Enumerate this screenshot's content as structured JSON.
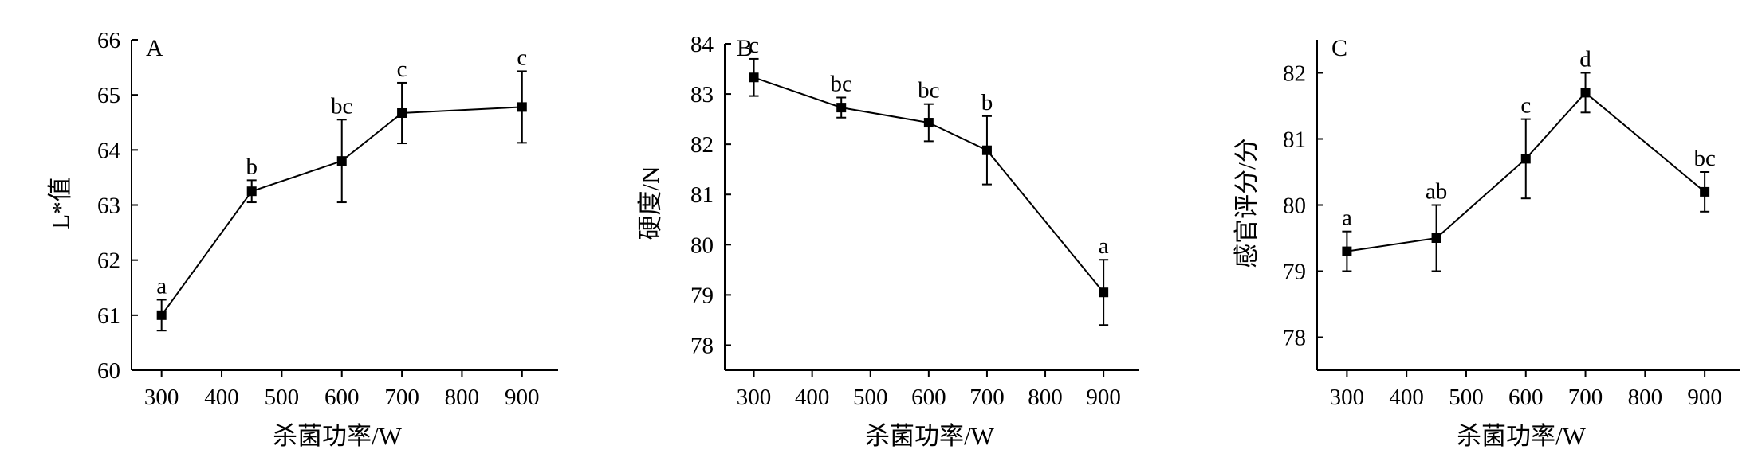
{
  "chart_data": [
    {
      "type": "line",
      "panel_label": "A",
      "xlabel": "杀菌功率/W",
      "ylabel": "L*值",
      "x_ticks": [
        300,
        400,
        500,
        600,
        700,
        800,
        900
      ],
      "x_tick_labels": [
        "300",
        "400",
        "500",
        "600",
        "700",
        "800",
        "900"
      ],
      "xlim": [
        250,
        960
      ],
      "ylim": [
        60,
        66
      ],
      "y_ticks": [
        60,
        61,
        62,
        63,
        64,
        65,
        66
      ],
      "y_tick_labels": [
        "60",
        "61",
        "62",
        "63",
        "64",
        "65",
        "66"
      ],
      "x": [
        300,
        450,
        600,
        700,
        900
      ],
      "values": [
        61.0,
        63.25,
        63.8,
        64.67,
        64.78
      ],
      "errors": [
        0.28,
        0.2,
        0.75,
        0.55,
        0.65
      ],
      "labels": [
        "a",
        "b",
        "bc",
        "c",
        "c"
      ],
      "grid": false,
      "legend": "none"
    },
    {
      "type": "line",
      "panel_label": "B",
      "xlabel": "杀菌功率/W",
      "ylabel": "硬度/N",
      "x_ticks": [
        300,
        400,
        500,
        600,
        700,
        800,
        900
      ],
      "x_tick_labels": [
        "300",
        "400",
        "500",
        "600",
        "700",
        "800",
        "900"
      ],
      "xlim": [
        250,
        960
      ],
      "ylim": [
        77.5,
        84
      ],
      "y_ticks": [
        78,
        79,
        80,
        81,
        82,
        83,
        84
      ],
      "y_tick_labels": [
        "78",
        "79",
        "80",
        "81",
        "82",
        "83",
        "84"
      ],
      "x": [
        300,
        450,
        600,
        700,
        900
      ],
      "values": [
        83.33,
        82.73,
        82.43,
        81.88,
        79.05
      ],
      "errors": [
        0.37,
        0.2,
        0.37,
        0.68,
        0.65
      ],
      "labels": [
        "c",
        "bc",
        "bc",
        "b",
        "a"
      ],
      "grid": false,
      "legend": "none"
    },
    {
      "type": "line",
      "panel_label": "C",
      "xlabel": "杀菌功率/W",
      "ylabel": "感官评分/分",
      "x_ticks": [
        300,
        400,
        500,
        600,
        700,
        800,
        900
      ],
      "x_tick_labels": [
        "300",
        "400",
        "500",
        "600",
        "700",
        "800",
        "900"
      ],
      "xlim": [
        250,
        960
      ],
      "ylim": [
        77.5,
        82.5
      ],
      "y_ticks": [
        78,
        79,
        80,
        81,
        82
      ],
      "y_tick_labels": [
        "78",
        "79",
        "80",
        "81",
        "82"
      ],
      "x": [
        300,
        450,
        600,
        700,
        900
      ],
      "values": [
        79.3,
        79.5,
        80.7,
        81.7,
        80.2
      ],
      "errors": [
        0.3,
        0.5,
        0.6,
        0.3,
        0.3
      ],
      "labels": [
        "a",
        "ab",
        "c",
        "d",
        "bc"
      ],
      "grid": false,
      "legend": "none"
    }
  ]
}
